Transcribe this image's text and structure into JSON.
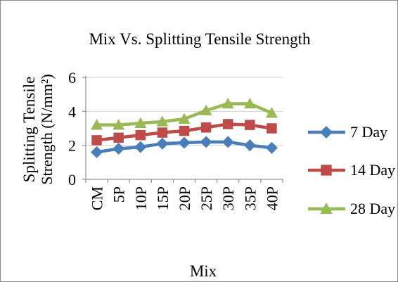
{
  "chart_data": {
    "type": "line",
    "title": "Mix Vs. Splitting  Tensile Strength",
    "xlabel": "Mix",
    "ylabel_line1": "Splitting  Tensile",
    "ylabel_line2": "Strength  (N/mm²)",
    "categories": [
      "CM",
      "5P",
      "10P",
      "15P",
      "20P",
      "25P",
      "30P",
      "35P",
      "40P"
    ],
    "ylim": [
      0,
      6
    ],
    "yticks": [
      "0",
      "2",
      "4",
      "6"
    ],
    "legend_position": "right",
    "series": [
      {
        "name": "7 Day",
        "color": "#4a7ebb",
        "marker": "diamond",
        "values": [
          1.6,
          1.8,
          1.9,
          2.1,
          2.15,
          2.2,
          2.2,
          2.0,
          1.85
        ]
      },
      {
        "name": "14 Day",
        "color": "#be4b48",
        "marker": "square",
        "values": [
          2.3,
          2.45,
          2.6,
          2.75,
          2.85,
          3.05,
          3.25,
          3.2,
          3.0
        ]
      },
      {
        "name": "28 Day",
        "color": "#98b954",
        "marker": "triangle",
        "values": [
          3.2,
          3.2,
          3.3,
          3.4,
          3.55,
          4.05,
          4.45,
          4.45,
          3.9
        ]
      }
    ]
  }
}
